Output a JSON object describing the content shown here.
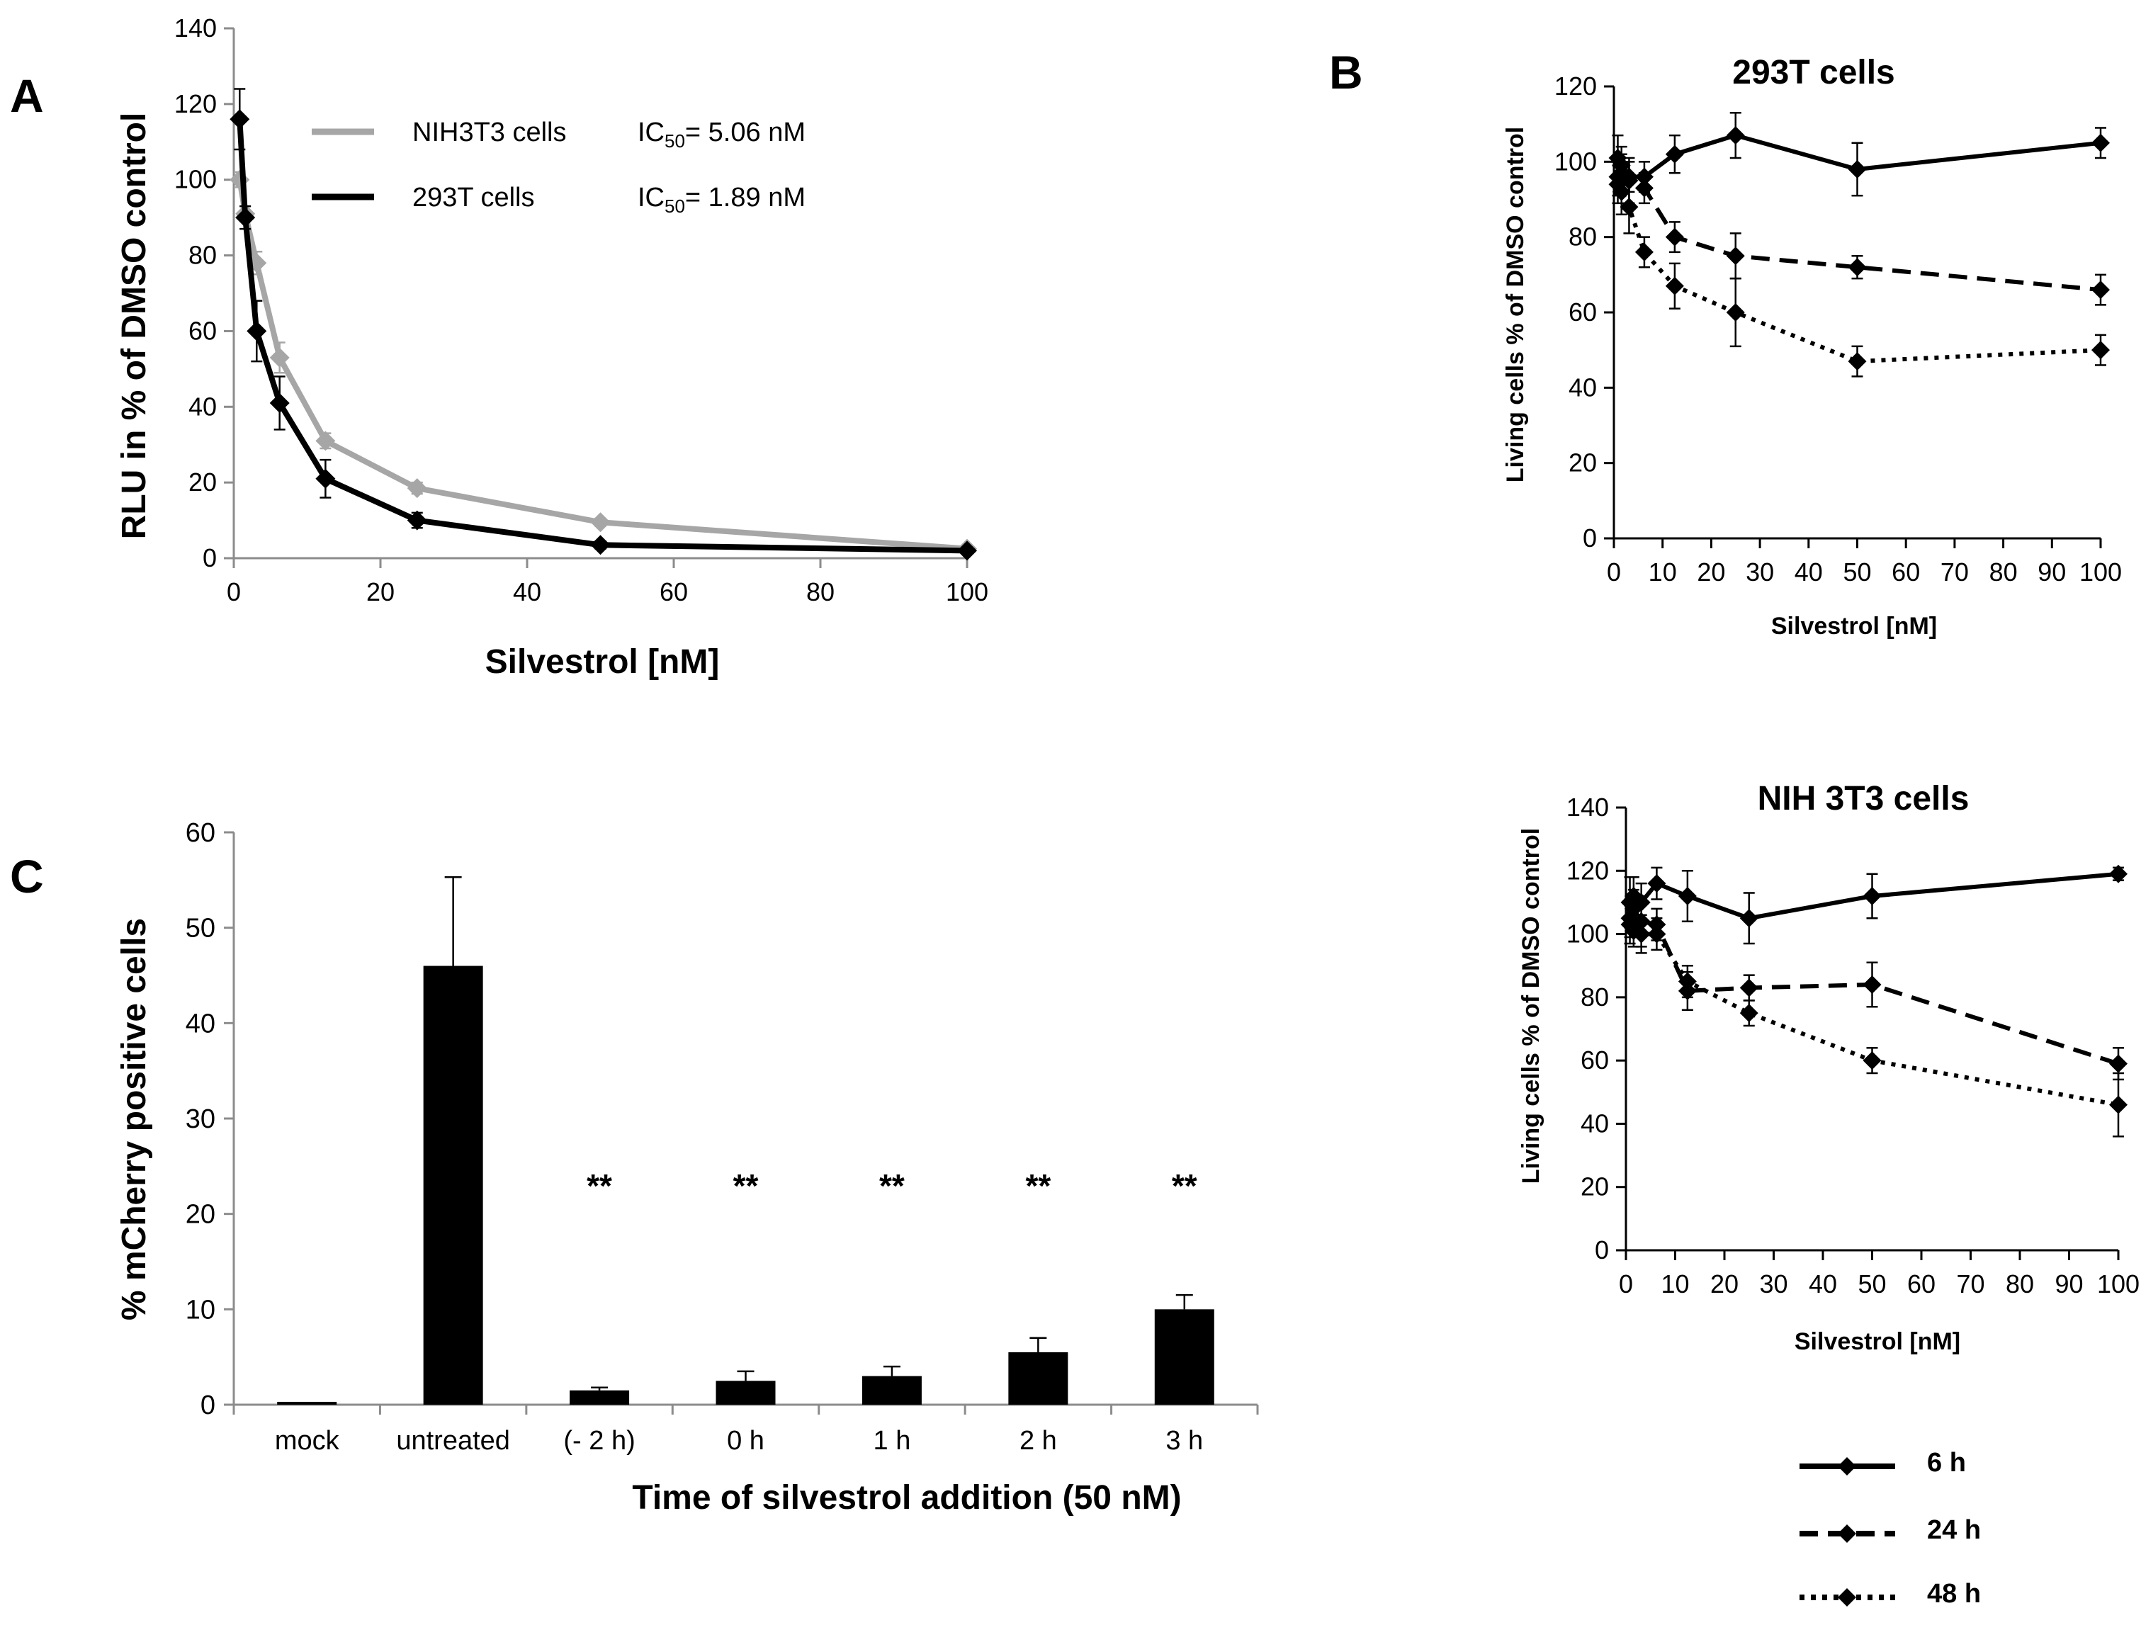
{
  "chart_data": [
    {
      "panel": "A",
      "type": "line",
      "title": "",
      "xlabel": "Silvestrol [nM]",
      "ylabel": "RLU in % of DMSO control",
      "xlim": [
        0,
        100
      ],
      "ylim": [
        0,
        140
      ],
      "xticks": [
        0,
        20,
        40,
        60,
        80,
        100
      ],
      "yticks": [
        0,
        20,
        40,
        60,
        80,
        100,
        120,
        140
      ],
      "series": [
        {
          "name": "NIH3T3  cells",
          "ic50_label": "IC",
          "ic50_sub": "50",
          "ic50_value": "= 5.06 nM",
          "color": "#a6a6a6",
          "x": [
            0.8,
            1.56,
            3.12,
            6.25,
            12.5,
            25,
            50,
            100
          ],
          "y": [
            100,
            91,
            78,
            53,
            31,
            18.5,
            9.5,
            2.5
          ],
          "err": [
            2,
            2,
            3,
            4,
            2,
            1.5,
            1,
            0.5
          ]
        },
        {
          "name": "293T  cells",
          "ic50_label": "IC",
          "ic50_sub": "50",
          "ic50_value": "= 1.89 nM",
          "color": "#000000",
          "x": [
            0.8,
            1.56,
            3.12,
            6.25,
            12.5,
            25,
            50,
            100
          ],
          "y": [
            116,
            90,
            60,
            41,
            21,
            10,
            3.5,
            2
          ],
          "err": [
            8,
            3,
            8,
            7,
            5,
            2,
            1,
            0.5
          ]
        }
      ]
    },
    {
      "panel": "B",
      "type": "line",
      "title": "293T cells",
      "xlabel": "Silvestrol  [nM]",
      "ylabel": "Living cells % of DMSO control",
      "xlim": [
        0,
        100
      ],
      "ylim": [
        0,
        120
      ],
      "xticks": [
        0,
        10,
        20,
        30,
        40,
        50,
        60,
        70,
        80,
        90,
        100
      ],
      "yticks": [
        0,
        20,
        40,
        60,
        80,
        100,
        120
      ],
      "series": [
        {
          "name": "6 h",
          "dash": "solid",
          "x": [
            0.8,
            1.56,
            3.12,
            6.25,
            12.5,
            25,
            50,
            100
          ],
          "y": [
            101,
            99,
            96,
            96,
            102,
            107,
            98,
            105
          ],
          "err": [
            6,
            5,
            4,
            4,
            5,
            6,
            7,
            4
          ]
        },
        {
          "name": "24 h",
          "dash": "dashed",
          "x": [
            0.8,
            1.56,
            3.12,
            6.25,
            12.5,
            25,
            50,
            100
          ],
          "y": [
            96,
            97,
            95,
            93,
            80,
            75,
            72,
            66
          ],
          "err": [
            5,
            5,
            6,
            4,
            4,
            6,
            3,
            4
          ]
        },
        {
          "name": "48 h",
          "dash": "dotted",
          "x": [
            0.8,
            1.56,
            3.12,
            6.25,
            12.5,
            25,
            50,
            100
          ],
          "y": [
            94,
            92,
            88,
            76,
            67,
            60,
            47,
            50
          ],
          "err": [
            5,
            6,
            7,
            4,
            6,
            9,
            4,
            4
          ]
        }
      ]
    },
    {
      "panel": "B",
      "type": "line",
      "title": "NIH 3T3 cells",
      "xlabel": "Silvestrol [nM]",
      "ylabel": "Living cells % of DMSO control",
      "xlim": [
        0,
        100
      ],
      "ylim": [
        0,
        140
      ],
      "xticks": [
        0,
        10,
        20,
        30,
        40,
        50,
        60,
        70,
        80,
        90,
        100
      ],
      "yticks": [
        0,
        20,
        40,
        60,
        80,
        100,
        120,
        140
      ],
      "series": [
        {
          "name": "6 h",
          "dash": "solid",
          "x": [
            0.8,
            1.56,
            3.12,
            6.25,
            12.5,
            25,
            50,
            100
          ],
          "y": [
            110,
            112,
            110,
            116,
            112,
            105,
            112,
            119
          ],
          "err": [
            8,
            6,
            6,
            5,
            8,
            8,
            7,
            2
          ]
        },
        {
          "name": "24 h",
          "dash": "dashed",
          "x": [
            0.8,
            1.56,
            3.12,
            6.25,
            12.5,
            25,
            50,
            100
          ],
          "y": [
            105,
            108,
            104,
            103,
            82,
            83,
            84,
            59
          ],
          "err": [
            6,
            6,
            8,
            5,
            6,
            4,
            7,
            5
          ]
        },
        {
          "name": "48 h",
          "dash": "dotted",
          "x": [
            0.8,
            1.56,
            3.12,
            6.25,
            12.5,
            25,
            50,
            100
          ],
          "y": [
            103,
            101,
            100,
            100,
            85,
            75,
            60,
            46
          ],
          "err": [
            6,
            5,
            6,
            5,
            5,
            4,
            4,
            10
          ]
        }
      ]
    },
    {
      "panel": "C",
      "type": "bar",
      "title": "",
      "xlabel": "Time of silvestrol addition (50 nM)",
      "ylabel": "% mCherry positive cells",
      "ylim": [
        0,
        60
      ],
      "yticks": [
        0,
        10,
        20,
        30,
        40,
        50,
        60
      ],
      "categories": [
        "mock",
        "untreated",
        "(- 2 h)",
        "0 h",
        "1 h",
        "2 h",
        "3 h"
      ],
      "values": [
        0.3,
        46,
        1.5,
        2.5,
        3,
        5.5,
        10
      ],
      "err": [
        0,
        9.3,
        0.3,
        1,
        1,
        1.5,
        1.5
      ],
      "significance": [
        "",
        "",
        "**",
        "**",
        "**",
        "**",
        "**"
      ]
    }
  ],
  "panels": {
    "a": "A",
    "b": "B",
    "c": "C"
  },
  "legend_b": {
    "items": [
      "6 h",
      "24 h",
      "48 h"
    ]
  }
}
